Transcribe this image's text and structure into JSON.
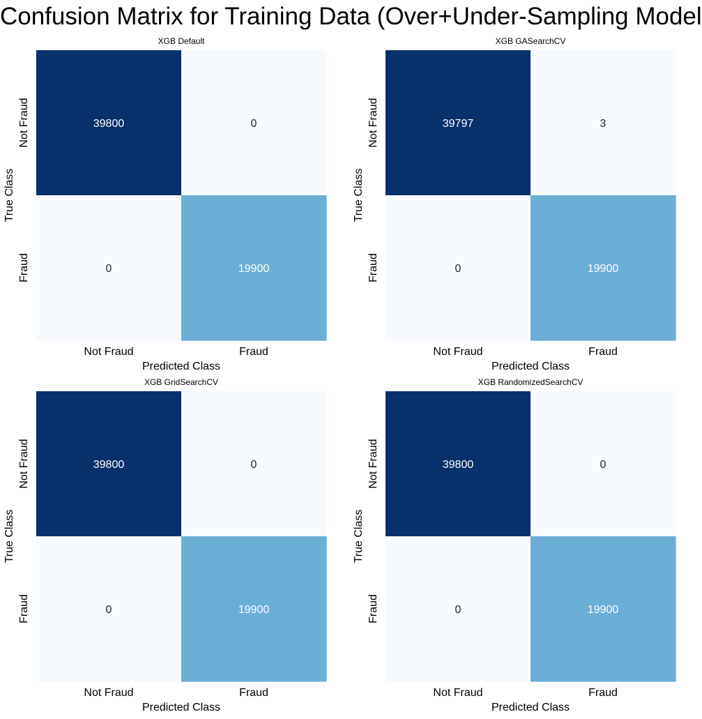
{
  "figure": {
    "suptitle": "Confusion Matrix for Training Data (Over+Under-Sampling Models)"
  },
  "colors": {
    "cmap_light": "#f7fbff",
    "cmap_mid": "#6baed6",
    "cmap_dark": "#08306b",
    "text_on_dark": "#ffffff",
    "text_on_light": "#262626"
  },
  "chart_data": [
    {
      "type": "heatmap",
      "title": "XGB Default",
      "xlabel": "Predicted Class",
      "ylabel": "True Class",
      "x_categories": [
        "Not Fraud",
        "Fraud"
      ],
      "y_categories": [
        "Not Fraud",
        "Fraud"
      ],
      "values": [
        [
          39800,
          0
        ],
        [
          0,
          19900
        ]
      ],
      "colorbar": false
    },
    {
      "type": "heatmap",
      "title": "XGB GASearchCV",
      "xlabel": "Predicted Class",
      "ylabel": "True Class",
      "x_categories": [
        "Not Fraud",
        "Fraud"
      ],
      "y_categories": [
        "Not Fraud",
        "Fraud"
      ],
      "values": [
        [
          39797,
          3
        ],
        [
          0,
          19900
        ]
      ],
      "colorbar": false
    },
    {
      "type": "heatmap",
      "title": "XGB GridSearchCV",
      "xlabel": "Predicted Class",
      "ylabel": "True Class",
      "x_categories": [
        "Not Fraud",
        "Fraud"
      ],
      "y_categories": [
        "Not Fraud",
        "Fraud"
      ],
      "values": [
        [
          39800,
          0
        ],
        [
          0,
          19900
        ]
      ],
      "colorbar": false
    },
    {
      "type": "heatmap",
      "title": "XGB RandomizedSearchCV",
      "xlabel": "Predicted Class",
      "ylabel": "True Class",
      "x_categories": [
        "Not Fraud",
        "Fraud"
      ],
      "y_categories": [
        "Not Fraud",
        "Fraud"
      ],
      "values": [
        [
          39800,
          0
        ],
        [
          0,
          19900
        ]
      ],
      "colorbar": false
    }
  ]
}
